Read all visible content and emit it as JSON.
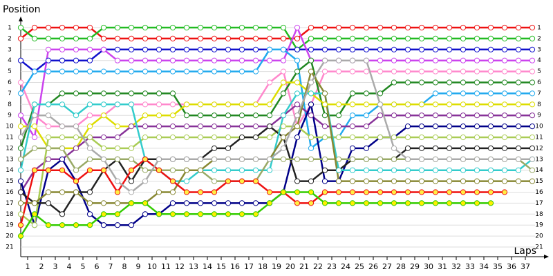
{
  "chart_data": {
    "type": "line",
    "y_label": "Position",
    "x_label": "Laps",
    "x": [
      0,
      1,
      2,
      3,
      4,
      5,
      6,
      7,
      8,
      9,
      10,
      11,
      12,
      13,
      14,
      15,
      16,
      17,
      18,
      19,
      20,
      21,
      22,
      23,
      24,
      25,
      26,
      27,
      28,
      29,
      30,
      31,
      32,
      33,
      34,
      35,
      36,
      37
    ],
    "xlim": [
      0,
      37
    ],
    "xticks": [
      1,
      2,
      3,
      4,
      5,
      6,
      7,
      8,
      9,
      10,
      11,
      12,
      13,
      14,
      15,
      16,
      17,
      18,
      19,
      20,
      21,
      22,
      23,
      24,
      25,
      26,
      27,
      28,
      29,
      30,
      31,
      32,
      33,
      34,
      35,
      36,
      37
    ],
    "ylim": [
      21,
      1
    ],
    "yticks": [
      1,
      2,
      3,
      4,
      5,
      6,
      7,
      8,
      9,
      10,
      11,
      12,
      13,
      14,
      15,
      16,
      17,
      18,
      19,
      20,
      21
    ],
    "grid": true,
    "series": [
      {
        "color": "#ee1111",
        "marker_fill": "#ffffff",
        "values": [
          2,
          1,
          1,
          1,
          1,
          1,
          2,
          2,
          2,
          2,
          2,
          2,
          2,
          2,
          2,
          2,
          2,
          2,
          2,
          2,
          2,
          1,
          1,
          1,
          1,
          1,
          1,
          1,
          1,
          1,
          1,
          1,
          1,
          1,
          1,
          1,
          1,
          1
        ]
      },
      {
        "color": "#22bb22",
        "marker_fill": "#ffffff",
        "values": [
          1,
          2,
          2,
          2,
          2,
          2,
          1,
          1,
          1,
          1,
          1,
          1,
          1,
          1,
          1,
          1,
          1,
          1,
          1,
          1,
          3,
          2,
          2,
          2,
          2,
          2,
          2,
          2,
          2,
          2,
          2,
          2,
          2,
          2,
          2,
          2,
          2,
          2
        ]
      },
      {
        "color": "#1111cc",
        "marker_fill": "#ffffff",
        "values": [
          4,
          5,
          4,
          4,
          4,
          4,
          3,
          3,
          3,
          3,
          3,
          3,
          3,
          3,
          3,
          3,
          3,
          3,
          3,
          3,
          3,
          3,
          3,
          3,
          3,
          3,
          3,
          3,
          3,
          3,
          3,
          3,
          3,
          3,
          3,
          3,
          3,
          3
        ]
      },
      {
        "color": "#cc44ee",
        "marker_fill": "#ffffff",
        "values": [
          9,
          11,
          3,
          3,
          3,
          3,
          3,
          4,
          4,
          4,
          4,
          4,
          4,
          4,
          4,
          4,
          4,
          4,
          4,
          4,
          1,
          4,
          4,
          4,
          4,
          4,
          4,
          4,
          4,
          4,
          4,
          4,
          4,
          4,
          4,
          4,
          4,
          4
        ]
      },
      {
        "color": "#ff88cc",
        "marker_fill": "#ffffff",
        "values": [
          6,
          9,
          10,
          10,
          10,
          9,
          9,
          8,
          8,
          8,
          8,
          8,
          8,
          8,
          8,
          8,
          8,
          8,
          6,
          5,
          10,
          8,
          5,
          5,
          5,
          5,
          5,
          5,
          5,
          5,
          5,
          5,
          5,
          5,
          5,
          5,
          5,
          5
        ]
      },
      {
        "color": "#228822",
        "marker_fill": "#ffffff",
        "values": [
          12,
          8,
          8,
          7,
          7,
          7,
          7,
          7,
          7,
          7,
          7,
          7,
          9,
          9,
          9,
          9,
          9,
          9,
          9,
          7,
          5,
          4,
          9,
          9,
          7,
          7,
          7,
          6,
          6,
          6,
          6,
          6,
          6,
          6,
          6,
          6,
          6,
          6
        ]
      },
      {
        "color": "#22aaee",
        "marker_fill": "#ffffff",
        "values": [
          7,
          5,
          5,
          5,
          5,
          5,
          5,
          5,
          5,
          5,
          5,
          5,
          5,
          5,
          5,
          5,
          5,
          5,
          3,
          3,
          4,
          12,
          11,
          11,
          9,
          9,
          8,
          8,
          8,
          8,
          7,
          7,
          7,
          7,
          7,
          7,
          7,
          7
        ]
      },
      {
        "color": "#dddd00",
        "marker_fill": "#ffffff",
        "values": [
          10,
          10,
          12,
          12,
          12,
          10,
          9,
          10,
          10,
          9,
          9,
          9,
          8,
          8,
          8,
          8,
          8,
          8,
          8,
          6,
          6,
          7,
          8,
          8,
          8,
          8,
          8,
          8,
          8,
          8,
          8,
          8,
          8,
          8,
          8,
          8,
          8,
          8
        ]
      },
      {
        "color": "#883399",
        "marker_fill": "#ffffff",
        "values": [
          16,
          14,
          13,
          13,
          12,
          11,
          11,
          11,
          10,
          10,
          10,
          10,
          10,
          10,
          10,
          10,
          10,
          10,
          10,
          9,
          8,
          9,
          10,
          10,
          10,
          10,
          9,
          9,
          9,
          9,
          9,
          9,
          9,
          9,
          9,
          9,
          9,
          9
        ]
      },
      {
        "color": "#000088",
        "marker_fill": "#ffffff",
        "values": [
          15,
          19,
          14,
          13,
          15,
          18,
          19,
          19,
          19,
          18,
          18,
          17,
          17,
          17,
          17,
          17,
          17,
          17,
          17,
          16,
          11,
          8,
          15,
          15,
          12,
          12,
          11,
          11,
          10,
          10,
          10,
          10,
          10,
          10,
          10,
          10,
          10,
          10
        ]
      },
      {
        "color": "#aacc55",
        "marker_fill": "#ffffff",
        "values": [
          18,
          19,
          11,
          11,
          11,
          11,
          12,
          12,
          12,
          11,
          11,
          11,
          11,
          11,
          11,
          11,
          11,
          11,
          11,
          10,
          10,
          11,
          11,
          11,
          11,
          11,
          11,
          11,
          11,
          11,
          11,
          11,
          11,
          11,
          11,
          11,
          11,
          11
        ]
      },
      {
        "color": "#222222",
        "marker_fill": "#ffffff",
        "values": [
          16,
          17,
          17,
          18,
          16,
          16,
          14,
          13,
          15,
          13,
          13,
          13,
          13,
          13,
          12,
          12,
          11,
          11,
          10,
          11,
          15,
          15,
          14,
          14,
          13,
          13,
          13,
          13,
          12,
          12,
          12,
          12,
          12,
          12,
          12,
          12,
          12,
          12
        ]
      },
      {
        "color": "#33cccc",
        "marker_fill": "#ffffff",
        "values": [
          14,
          8,
          8,
          8,
          9,
          8,
          8,
          8,
          8,
          13,
          14,
          15,
          15,
          14,
          14,
          14,
          14,
          14,
          14,
          9,
          7,
          7,
          7,
          14,
          14,
          14,
          14,
          14,
          14,
          14,
          14,
          14,
          14,
          14,
          14,
          14,
          14,
          13
        ]
      },
      {
        "color": "#99aa66",
        "marker_fill": "#ffffff",
        "values": [
          13,
          12,
          12,
          12,
          14,
          13,
          13,
          13,
          13,
          14,
          14,
          14,
          14,
          14,
          15,
          15,
          15,
          15,
          13,
          13,
          13,
          13,
          13,
          13,
          13,
          13,
          13,
          13,
          13,
          13,
          13,
          13,
          13,
          13,
          13,
          13,
          13,
          14
        ]
      },
      {
        "color": "#888833",
        "marker_fill": "#ffffff",
        "values": [
          17,
          17,
          16,
          16,
          16,
          17,
          17,
          17,
          17,
          17,
          16,
          16,
          14,
          14,
          13,
          13,
          13,
          13,
          13,
          11,
          10,
          5,
          7,
          15,
          15,
          15,
          15,
          15,
          15,
          15,
          15,
          15,
          15,
          15,
          15,
          15,
          15,
          15
        ]
      },
      {
        "color": "#ee1111",
        "marker_fill": "#ffee44",
        "values": [
          19,
          14,
          14,
          14,
          15,
          14,
          14,
          16,
          14,
          13,
          14,
          15,
          16,
          16,
          16,
          15,
          15,
          15,
          16,
          16,
          17,
          17,
          16,
          16,
          16,
          16,
          16,
          16,
          16,
          16,
          16,
          16,
          16,
          16,
          16,
          16,
          null,
          null
        ]
      },
      {
        "color": "#33cc00",
        "marker_fill": "#ffee00",
        "values": [
          20,
          18,
          19,
          19,
          19,
          19,
          18,
          18,
          17,
          17,
          18,
          18,
          18,
          18,
          18,
          18,
          18,
          18,
          17,
          16,
          16,
          16,
          17,
          17,
          17,
          17,
          17,
          17,
          17,
          17,
          17,
          17,
          17,
          17,
          17,
          null,
          null,
          null
        ]
      },
      {
        "color": "#aaaaaa",
        "marker_fill": "#ffffff",
        "values": [
          11,
          9,
          9,
          10,
          10,
          12,
          13,
          15,
          16,
          15,
          13,
          13,
          13,
          13,
          13,
          13,
          13,
          13,
          13,
          12,
          9,
          6,
          4,
          4,
          4,
          4,
          8,
          12,
          13,
          13,
          13,
          13,
          13,
          13,
          13,
          13,
          13,
          13
        ]
      }
    ]
  }
}
